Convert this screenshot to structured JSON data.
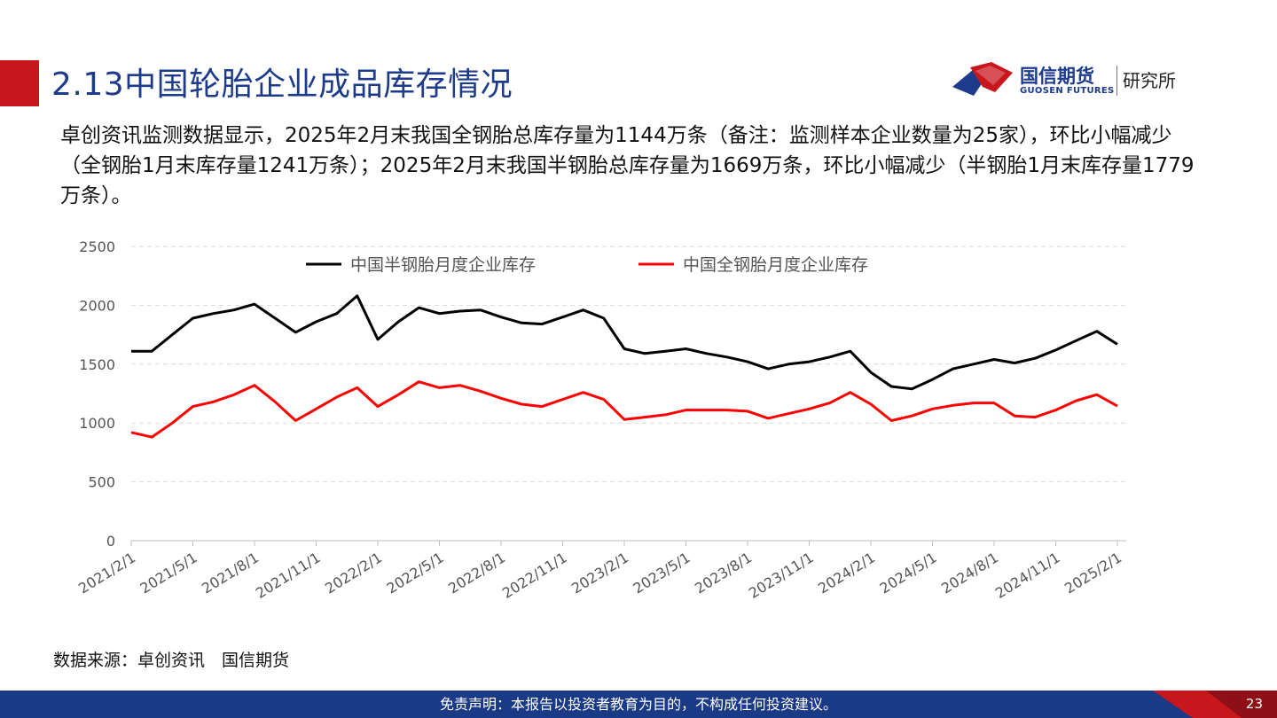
{
  "header": {
    "title": "2.13中国轮胎企业成品库存情况"
  },
  "logo": {
    "name": "国信期货",
    "en": "GUOSEN FUTURES",
    "dept": "研究所"
  },
  "summary": "卓创资讯监测数据显示，2025年2月末我国全钢胎总库存量为1144万条（备注：监测样本企业数量为25家），环比小幅减少（全钢胎1月末库存量1241万条）；2025年2月末我国半钢胎总库存量为1669万条，环比小幅减少（半钢胎1月末库存量1779万条）。",
  "source": "数据来源：卓创资讯　国信期货",
  "footer": {
    "disclaimer": "免责声明：本报告以投资者教育为目的，不构成任何投资建议。",
    "page": "23"
  },
  "colors": {
    "brand_blue": "#1d3b8a",
    "brand_red": "#c8161d"
  },
  "chart_data": {
    "type": "line",
    "title": "",
    "xlabel": "",
    "ylabel": "",
    "ylim": [
      0,
      2500
    ],
    "yticks": [
      "0",
      "500",
      "1000",
      "1500",
      "2000",
      "2500"
    ],
    "grid": true,
    "legend_position": "top",
    "x": [
      "2021/2/1",
      "2021/3/1",
      "2021/4/1",
      "2021/5/1",
      "2021/6/1",
      "2021/7/1",
      "2021/8/1",
      "2021/9/1",
      "2021/10/1",
      "2021/11/1",
      "2021/12/1",
      "2022/1/1",
      "2022/2/1",
      "2022/3/1",
      "2022/4/1",
      "2022/5/1",
      "2022/6/1",
      "2022/7/1",
      "2022/8/1",
      "2022/9/1",
      "2022/10/1",
      "2022/11/1",
      "2022/12/1",
      "2023/1/1",
      "2023/2/1",
      "2023/3/1",
      "2023/4/1",
      "2023/5/1",
      "2023/6/1",
      "2023/7/1",
      "2023/8/1",
      "2023/9/1",
      "2023/10/1",
      "2023/11/1",
      "2023/12/1",
      "2024/1/1",
      "2024/2/1",
      "2024/3/1",
      "2024/4/1",
      "2024/5/1",
      "2024/6/1",
      "2024/7/1",
      "2024/8/1",
      "2024/9/1",
      "2024/10/1",
      "2024/11/1",
      "2024/12/1",
      "2025/1/1",
      "2025/2/1"
    ],
    "xtick_labels": [
      "2021/2/1",
      "2021/5/1",
      "2021/8/1",
      "2021/11/1",
      "2022/2/1",
      "2022/5/1",
      "2022/8/1",
      "2022/11/1",
      "2023/2/1",
      "2023/5/1",
      "2023/8/1",
      "2023/11/1",
      "2024/2/1",
      "2024/5/1",
      "2024/8/1",
      "2024/11/1",
      "2025/2/1"
    ],
    "series": [
      {
        "name": "中国半钢胎月度企业库存",
        "color": "#000000",
        "values": [
          1610,
          1610,
          1750,
          1890,
          1930,
          1960,
          2010,
          1890,
          1770,
          1860,
          1930,
          2080,
          1710,
          1860,
          1980,
          1930,
          1950,
          1960,
          1900,
          1850,
          1840,
          1900,
          1960,
          1890,
          1630,
          1590,
          1610,
          1630,
          1590,
          1560,
          1520,
          1460,
          1500,
          1520,
          1560,
          1610,
          1430,
          1310,
          1290,
          1370,
          1460,
          1500,
          1540,
          1510,
          1550,
          1620,
          1700,
          1779,
          1669
        ]
      },
      {
        "name": "中国全钢胎月度企业库存",
        "color": "#ff0000",
        "values": [
          920,
          880,
          1000,
          1140,
          1180,
          1240,
          1320,
          1180,
          1020,
          1120,
          1220,
          1300,
          1140,
          1240,
          1350,
          1300,
          1320,
          1270,
          1210,
          1160,
          1140,
          1200,
          1260,
          1200,
          1030,
          1050,
          1070,
          1110,
          1110,
          1110,
          1100,
          1040,
          1080,
          1120,
          1170,
          1260,
          1160,
          1020,
          1060,
          1120,
          1150,
          1170,
          1170,
          1060,
          1050,
          1110,
          1190,
          1241,
          1144
        ]
      }
    ]
  }
}
